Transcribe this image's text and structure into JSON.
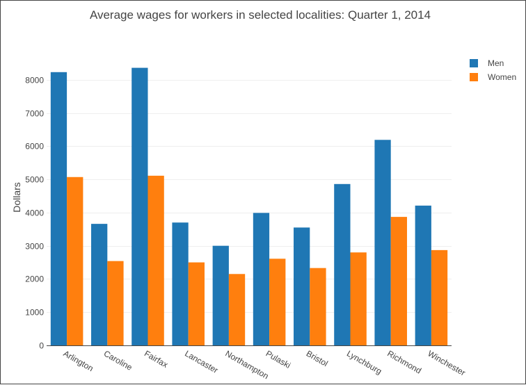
{
  "chart_data": {
    "type": "bar",
    "title": "Average wages for workers in selected localities: Quarter 1, 2014",
    "xlabel": "",
    "ylabel": "Dollars",
    "categories": [
      "Arlington",
      "Caroline",
      "Fairfax",
      "Lancaster",
      "Northampton",
      "Pulaski",
      "Bristol",
      "Lynchburg",
      "Richmond",
      "Winchester"
    ],
    "series": [
      {
        "name": "Men",
        "color": "#1f77b4",
        "values": [
          8230,
          3660,
          8360,
          3700,
          3000,
          3990,
          3550,
          4860,
          6190,
          4210
        ]
      },
      {
        "name": "Women",
        "color": "#ff7f0e",
        "values": [
          5070,
          2540,
          5110,
          2500,
          2150,
          2610,
          2330,
          2800,
          3870,
          2870
        ]
      }
    ],
    "ylim": [
      0,
      9000
    ],
    "yticks": [
      "0",
      "1000",
      "2000",
      "3000",
      "4000",
      "5000",
      "6000",
      "7000",
      "8000"
    ],
    "grid": true,
    "legend_position": "top-right"
  }
}
